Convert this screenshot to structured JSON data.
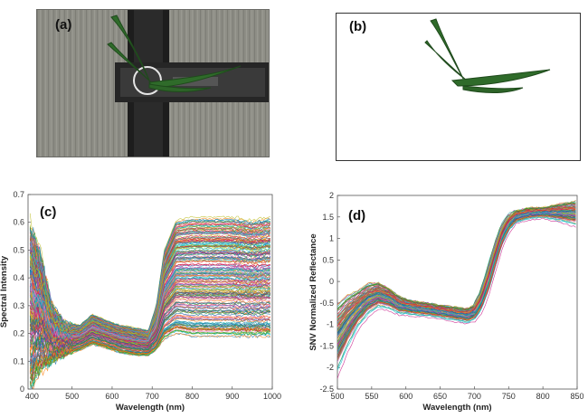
{
  "panels": {
    "a": {
      "tag": "(a)"
    },
    "b": {
      "tag": "(b)"
    },
    "c": {
      "tag": "(c)"
    },
    "d": {
      "tag": "(d)"
    }
  },
  "colors": {
    "leaf": "#2f6b2a",
    "leaf_dark": "#1f4a1c",
    "photo_bg": "#8c8c84",
    "belt": "#1e1e1e"
  },
  "chart_data": [
    {
      "panel": "c",
      "type": "line",
      "title": "",
      "xlabel": "Wavelength (nm)",
      "ylabel": "Spectral Intensity",
      "xlim": [
        390,
        1000
      ],
      "ylim": [
        0,
        0.7
      ],
      "xticks": [
        400,
        500,
        600,
        700,
        800,
        900,
        1000
      ],
      "yticks": [
        0,
        0.1,
        0.2,
        0.3,
        0.4,
        0.5,
        0.6,
        0.7
      ],
      "series_count": 220,
      "envelope": {
        "x": [
          395,
          420,
          450,
          480,
          520,
          550,
          580,
          620,
          660,
          690,
          710,
          730,
          760,
          800,
          850,
          900,
          950,
          995
        ],
        "low": [
          0.0,
          0.06,
          0.1,
          0.12,
          0.14,
          0.16,
          0.15,
          0.13,
          0.12,
          0.12,
          0.14,
          0.18,
          0.2,
          0.19,
          0.19,
          0.19,
          0.19,
          0.19
        ],
        "high": [
          0.6,
          0.5,
          0.3,
          0.24,
          0.23,
          0.27,
          0.25,
          0.23,
          0.22,
          0.21,
          0.3,
          0.5,
          0.61,
          0.62,
          0.62,
          0.62,
          0.61,
          0.62
        ]
      }
    },
    {
      "panel": "d",
      "type": "line",
      "title": "",
      "xlabel": "Wavelength (nm)",
      "ylabel": "SNV Normalized Reflectance",
      "xlim": [
        500,
        850
      ],
      "ylim": [
        -2.5,
        2
      ],
      "xticks": [
        500,
        550,
        600,
        650,
        700,
        750,
        800,
        850
      ],
      "yticks": [
        -2.5,
        -2,
        -1.5,
        -1,
        -0.5,
        0,
        0.5,
        1,
        1.5,
        2
      ],
      "series_count": 160,
      "mean_curve": {
        "x": [
          500,
          515,
          530,
          545,
          560,
          575,
          590,
          610,
          630,
          650,
          670,
          690,
          700,
          710,
          720,
          730,
          740,
          750,
          760,
          780,
          800,
          820,
          850
        ],
        "y": [
          -1.35,
          -0.95,
          -0.65,
          -0.42,
          -0.32,
          -0.4,
          -0.55,
          -0.62,
          -0.65,
          -0.7,
          -0.75,
          -0.8,
          -0.72,
          -0.45,
          0.0,
          0.55,
          1.05,
          1.35,
          1.5,
          1.58,
          1.6,
          1.6,
          1.58
        ]
      },
      "spread": {
        "x": [
          500,
          530,
          560,
          600,
          650,
          700,
          720,
          740,
          760,
          800,
          850
        ],
        "y": [
          0.55,
          0.3,
          0.2,
          0.12,
          0.1,
          0.12,
          0.18,
          0.15,
          0.1,
          0.08,
          0.2
        ]
      }
    }
  ]
}
